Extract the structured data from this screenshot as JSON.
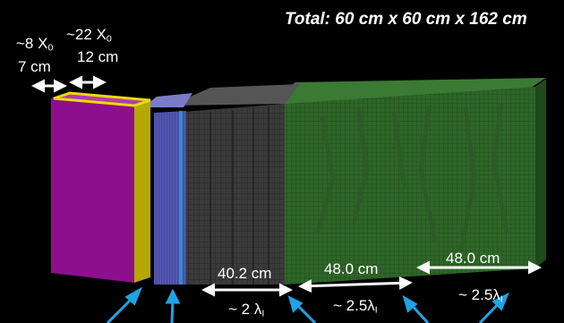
{
  "title": "Total: 60 cm x 60 cm x 162 cm",
  "labels": {
    "seg1_x0_prefix": "~8 X",
    "seg1_x0_sub": "0",
    "seg1_len": "7 cm",
    "seg2_x0_prefix": "~22 X",
    "seg2_x0_sub": "0",
    "seg2_len": "12 cm",
    "seg3_len": "40.2 cm",
    "seg3_lambda_prefix": "~ 2 λ",
    "seg3_lambda_sub": "I",
    "seg4_len": "48.0 cm",
    "seg4_lambda_prefix": "~ 2.5λ",
    "seg4_lambda_sub": "I",
    "seg5_len": "48.0 cm",
    "seg5_lambda_prefix": "~ 2.5λ",
    "seg5_lambda_sub": "I"
  },
  "colors": {
    "background": "#000000",
    "magenta_block": "#8e0f8e",
    "yellow_layer": "#b5a800",
    "blue_layer": "#4d4fa8",
    "gray_section": "#3c3c3c",
    "green_section": "#2f6a2a",
    "pointer_arrows": "#1fa3e3",
    "dimension_arrows": "#ffffff"
  }
}
